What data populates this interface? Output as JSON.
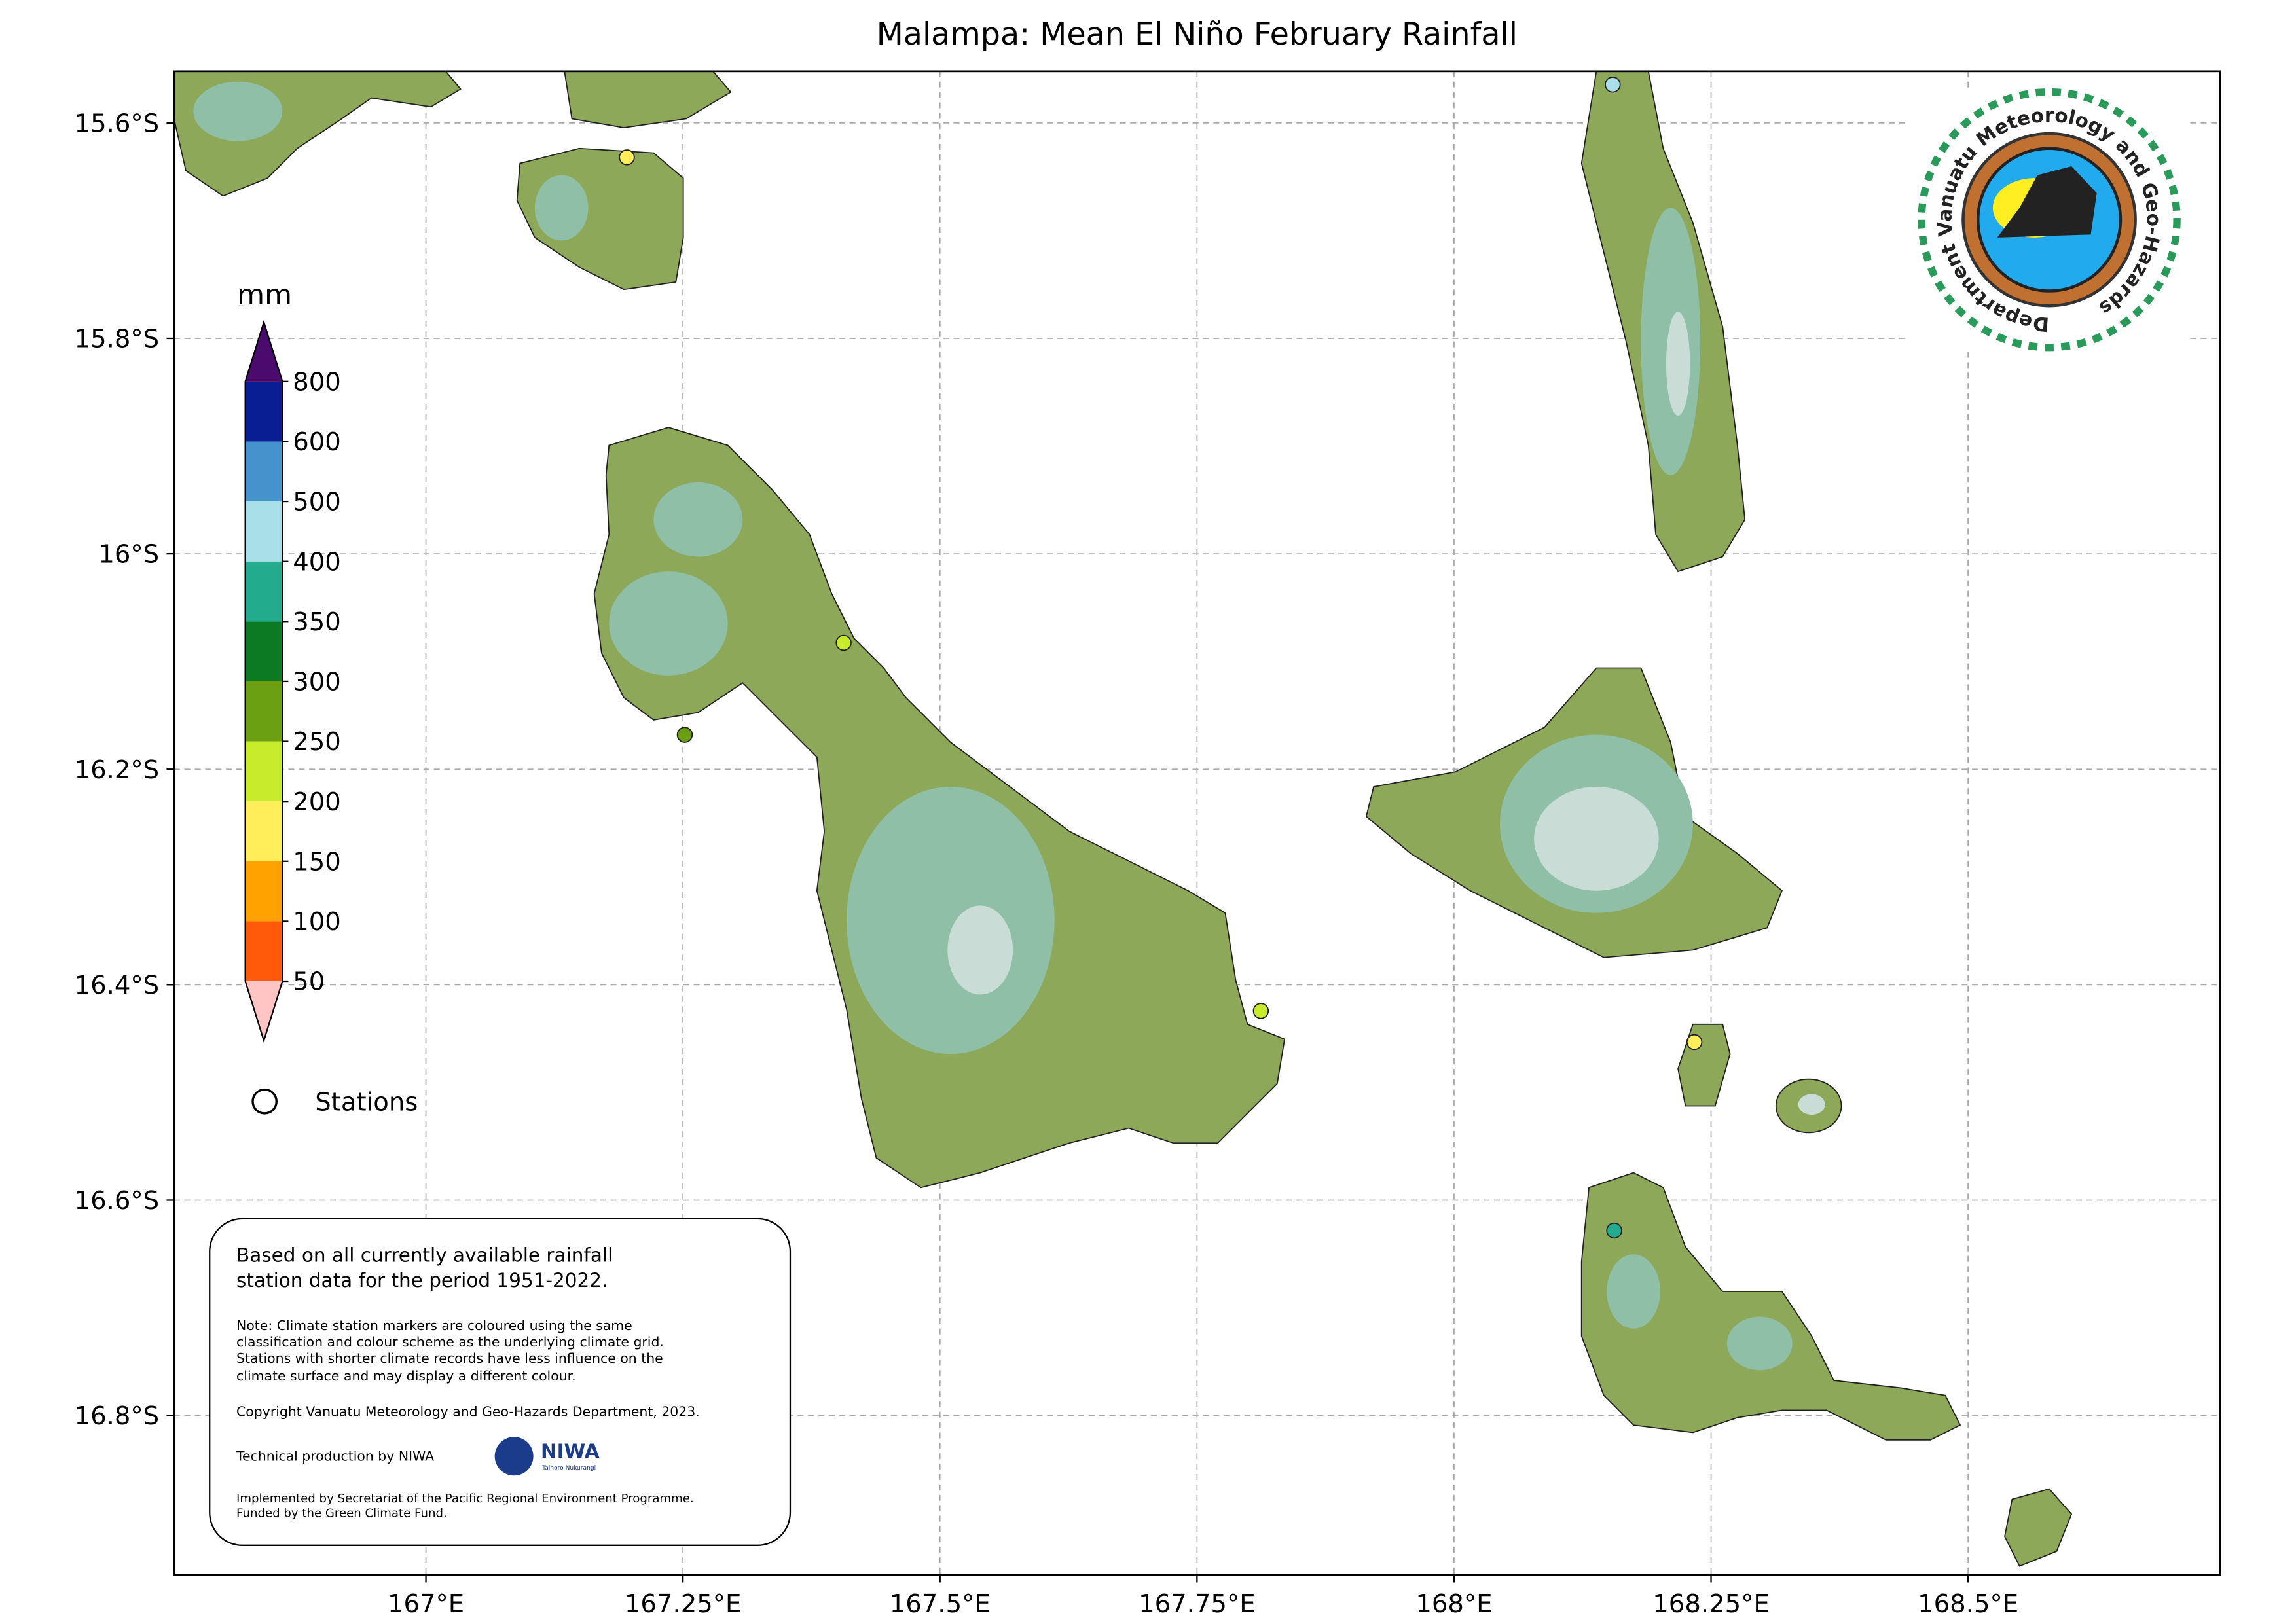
{
  "title": "Malampa: Mean El Niño February Rainfall",
  "map": {
    "xlim": [
      166.755,
      168.745
    ],
    "ylim": [
      -16.948,
      -15.552
    ],
    "xticks": [
      {
        "value": 167,
        "label": "167°E"
      },
      {
        "value": 167.25,
        "label": "167.25°E"
      },
      {
        "value": 167.5,
        "label": "167.5°E"
      },
      {
        "value": 167.75,
        "label": "167.75°E"
      },
      {
        "value": 168,
        "label": "168°E"
      },
      {
        "value": 168.25,
        "label": "168.25°E"
      },
      {
        "value": 168.5,
        "label": "168.5°E"
      }
    ],
    "yticks": [
      {
        "value": -15.6,
        "label": "15.6°S"
      },
      {
        "value": -15.8,
        "label": "15.8°S"
      },
      {
        "value": -16,
        "label": "16°S"
      },
      {
        "value": -16.2,
        "label": "16.2°S"
      },
      {
        "value": -16.4,
        "label": "16.4°S"
      },
      {
        "value": -16.6,
        "label": "16.6°S"
      },
      {
        "value": -16.8,
        "label": "16.8°S"
      }
    ],
    "grid": true
  },
  "colorbar": {
    "unit": "mm",
    "ticks": [
      50,
      100,
      150,
      200,
      250,
      300,
      350,
      400,
      500,
      600,
      800
    ],
    "colors": [
      "#ff5a0a",
      "#ffa200",
      "#ffee5a",
      "#c8ec2c",
      "#6aa012",
      "#0b7a22",
      "#22ab8c",
      "#a8dfe8",
      "#4592cc",
      "#0a1e94"
    ],
    "under_color": "#ffc4c4",
    "over_color": "#4a0a6e"
  },
  "legend": {
    "stations": "Stations"
  },
  "note_box": {
    "lead": [
      "Based on all currently available rainfall",
      "station data for the period 1951-2022."
    ],
    "note": [
      "Note: Climate station markers are coloured using the same",
      "classification and colour scheme as the underlying climate grid.",
      "Stations with shorter climate records have less influence on the",
      "climate surface and may display a different colour."
    ],
    "copyright": "Copyright Vanuatu Meteorology and Geo-Hazards Department, 2023.",
    "production": "Technical production by NIWA",
    "niwa": "NIWA",
    "niwa_sub": "Taihoro Nukurangi",
    "funding": [
      "Implemented by Secretariat of the Pacific Regional Environment Programme.",
      "Funded by the Green Climate Fund."
    ]
  },
  "logo": {
    "ring_text": "Department Vanuatu Meteorology and Geo-Hazards"
  }
}
